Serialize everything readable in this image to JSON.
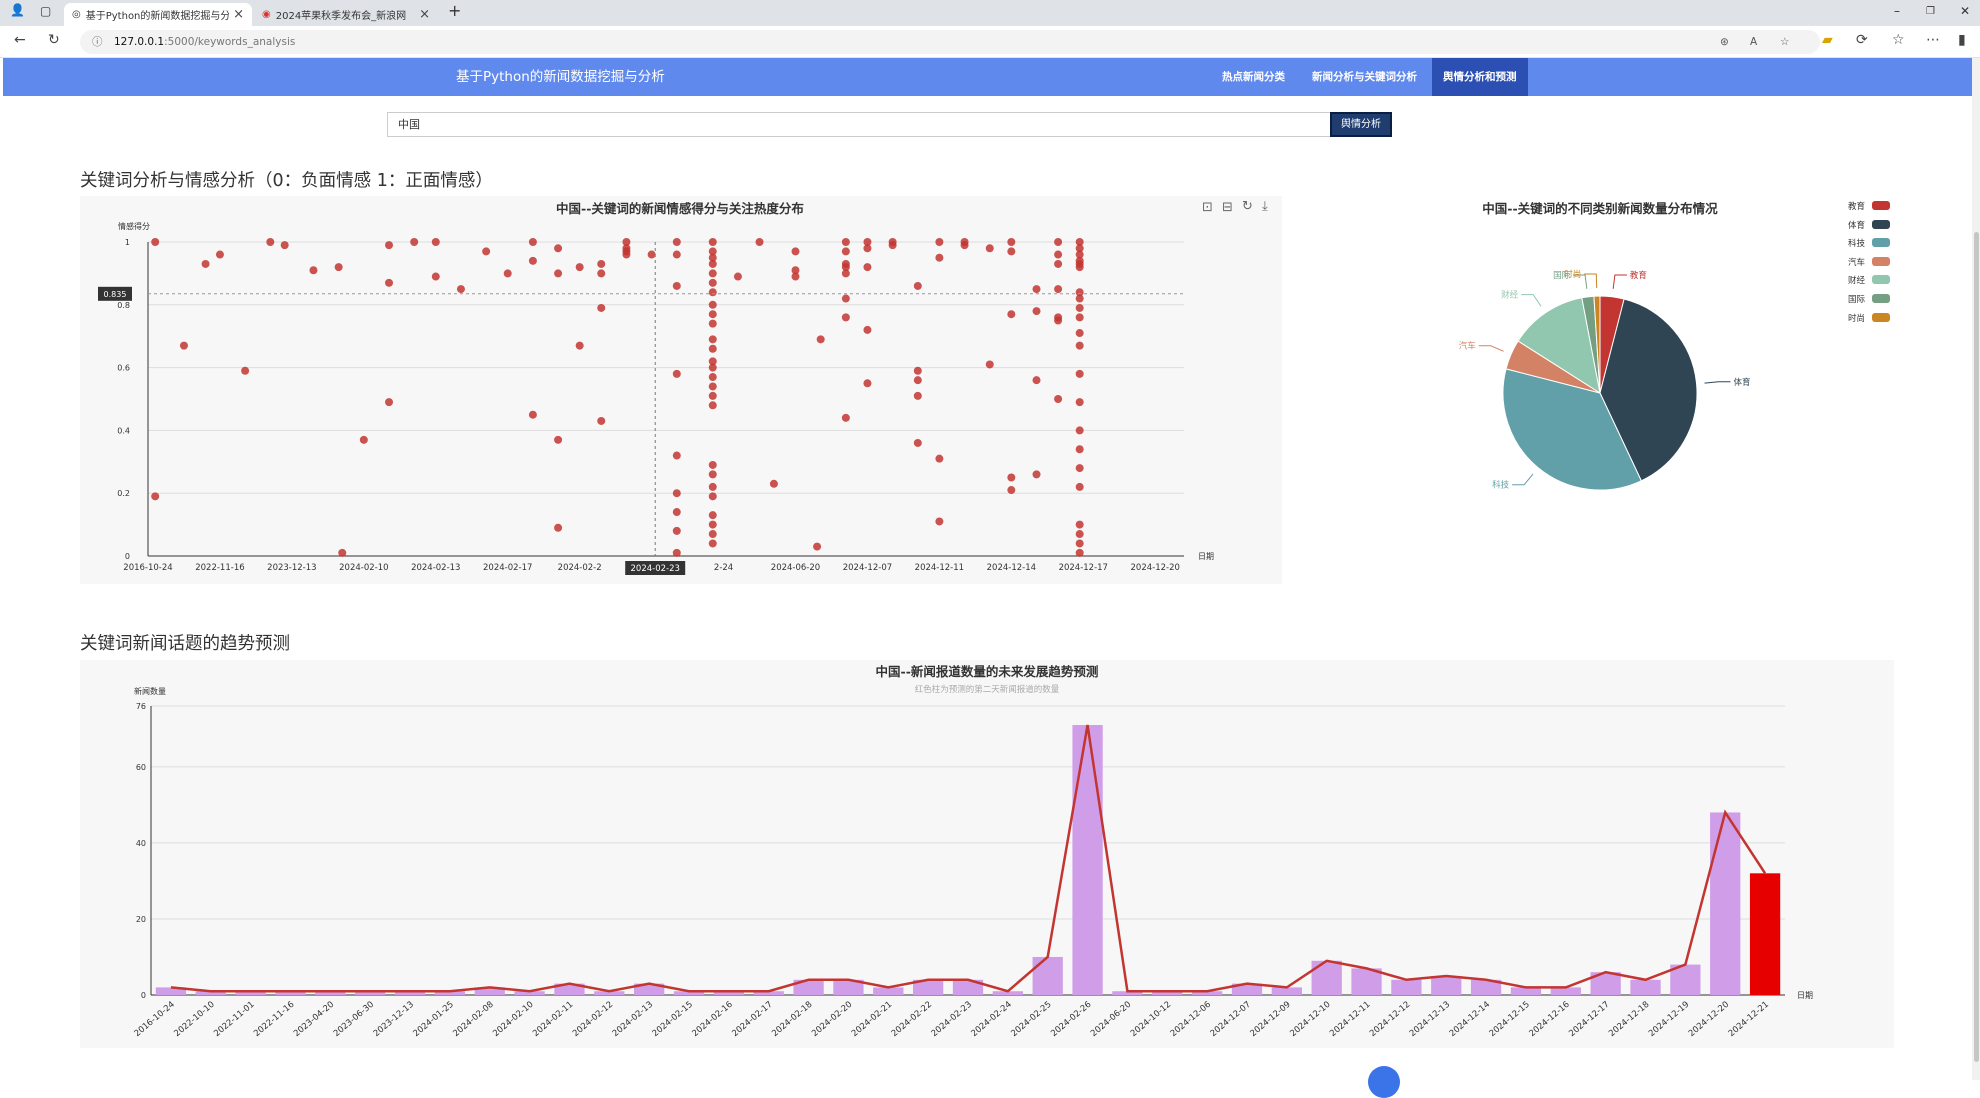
{
  "browser": {
    "tabs": [
      {
        "title": "基于Python的新闻数据挖掘与分析",
        "active": true
      },
      {
        "title": "2024苹果秋季发布会_新浪网",
        "active": false
      }
    ],
    "url_host": "127.0.0.1",
    "url_path": ":5000/keywords_analysis",
    "new_tab": "+"
  },
  "navbar": {
    "brand": "基于Python的新闻数据挖掘与分析",
    "items": [
      {
        "label": "热点新闻分类",
        "active": false
      },
      {
        "label": "新闻分析与关键词分析",
        "active": false
      },
      {
        "label": "舆情分析和预测",
        "active": true
      }
    ]
  },
  "search": {
    "value": "中国",
    "button": "舆情分析"
  },
  "section1": {
    "heading": "关键词分析与情感分析（0：负面情感 1：正面情感）"
  },
  "section2": {
    "heading": "关键词新闻话题的趋势预测"
  },
  "chart_data": [
    {
      "type": "scatter",
      "title": "中国--关键词的新闻情感得分与关注热度分布",
      "ylabel": "情感得分",
      "xlabel": "日期",
      "ylim": [
        0,
        1
      ],
      "yticks": [
        "0",
        "0.2",
        "0.4",
        "0.6",
        "0.8",
        "1"
      ],
      "xticks": [
        "2016-10-24",
        "2022-11-16",
        "2023-12-13",
        "2024-02-10",
        "2024-02-13",
        "2024-02-17",
        "2024-02-2",
        "2024-02-23",
        "2-24",
        "2024-06-20",
        "2024-12-07",
        "2024-12-11",
        "2024-12-14",
        "2024-12-17",
        "2024-12-20"
      ],
      "tooltip_y": "0.835",
      "tooltip_x": "2024-02-23",
      "grid": true,
      "points": [
        [
          0.2,
          1
        ],
        [
          0.2,
          0.19
        ],
        [
          1.0,
          0.67
        ],
        [
          1.6,
          0.93
        ],
        [
          2.0,
          0.96
        ],
        [
          2.7,
          0.59
        ],
        [
          3.4,
          1
        ],
        [
          3.8,
          0.99
        ],
        [
          4.6,
          0.91
        ],
        [
          5.3,
          0.92
        ],
        [
          5.4,
          0.01
        ],
        [
          6.0,
          0.37
        ],
        [
          6.7,
          0.99
        ],
        [
          6.7,
          0.87
        ],
        [
          6.7,
          0.49
        ],
        [
          7.4,
          1
        ],
        [
          8.0,
          0.89
        ],
        [
          8.0,
          1
        ],
        [
          8.7,
          0.85
        ],
        [
          9.4,
          0.97
        ],
        [
          10.0,
          0.9
        ],
        [
          10.7,
          1
        ],
        [
          10.7,
          0.94
        ],
        [
          10.7,
          0.45
        ],
        [
          11.4,
          0.98
        ],
        [
          11.4,
          0.9
        ],
        [
          11.4,
          0.37
        ],
        [
          11.4,
          0.09
        ],
        [
          12.0,
          0.92
        ],
        [
          12.0,
          0.67
        ],
        [
          12.6,
          0.93
        ],
        [
          12.6,
          0.9
        ],
        [
          12.6,
          0.79
        ],
        [
          12.6,
          0.43
        ],
        [
          13.3,
          1
        ],
        [
          13.3,
          0.98
        ],
        [
          13.3,
          0.97
        ],
        [
          13.3,
          0.96
        ],
        [
          14.0,
          0.96
        ],
        [
          14.7,
          1
        ],
        [
          14.7,
          0.96
        ],
        [
          14.7,
          0.86
        ],
        [
          14.7,
          0.58
        ],
        [
          14.7,
          0.32
        ],
        [
          14.7,
          0.2
        ],
        [
          14.7,
          0.14
        ],
        [
          14.7,
          0.08
        ],
        [
          14.7,
          0.01
        ],
        [
          15.7,
          1
        ],
        [
          15.7,
          0.97
        ],
        [
          15.7,
          0.95
        ],
        [
          15.7,
          0.93
        ],
        [
          15.7,
          0.9
        ],
        [
          15.7,
          0.87
        ],
        [
          15.7,
          0.84
        ],
        [
          15.7,
          0.8
        ],
        [
          15.7,
          0.77
        ],
        [
          15.7,
          0.74
        ],
        [
          15.7,
          0.69
        ],
        [
          15.7,
          0.66
        ],
        [
          15.7,
          0.62
        ],
        [
          15.7,
          0.6
        ],
        [
          15.7,
          0.57
        ],
        [
          15.7,
          0.54
        ],
        [
          15.7,
          0.51
        ],
        [
          15.7,
          0.48
        ],
        [
          15.7,
          0.29
        ],
        [
          15.7,
          0.26
        ],
        [
          15.7,
          0.22
        ],
        [
          15.7,
          0.19
        ],
        [
          15.7,
          0.13
        ],
        [
          15.7,
          0.1
        ],
        [
          15.7,
          0.07
        ],
        [
          15.7,
          0.04
        ],
        [
          16.4,
          0.89
        ],
        [
          17.0,
          1
        ],
        [
          17.4,
          0.23
        ],
        [
          18.0,
          0.97
        ],
        [
          18.0,
          0.91
        ],
        [
          18.0,
          0.89
        ],
        [
          18.6,
          0.03
        ],
        [
          18.7,
          0.69
        ],
        [
          19.4,
          1
        ],
        [
          19.4,
          0.97
        ],
        [
          19.4,
          0.93
        ],
        [
          19.4,
          0.9
        ],
        [
          19.4,
          0.82
        ],
        [
          19.4,
          0.76
        ],
        [
          19.4,
          0.44
        ],
        [
          19.4,
          0.92
        ],
        [
          20.0,
          1
        ],
        [
          20.0,
          0.98
        ],
        [
          20.0,
          0.92
        ],
        [
          20.0,
          0.72
        ],
        [
          20.0,
          0.55
        ],
        [
          20.7,
          1
        ],
        [
          20.7,
          0.99
        ],
        [
          21.4,
          0.86
        ],
        [
          21.4,
          0.59
        ],
        [
          21.4,
          0.56
        ],
        [
          21.4,
          0.51
        ],
        [
          21.4,
          0.36
        ],
        [
          22.0,
          1
        ],
        [
          22.0,
          0.95
        ],
        [
          22.0,
          0.31
        ],
        [
          22.0,
          0.11
        ],
        [
          22.7,
          1
        ],
        [
          22.7,
          0.99
        ],
        [
          23.4,
          0.98
        ],
        [
          23.4,
          0.61
        ],
        [
          24.0,
          1
        ],
        [
          24.0,
          0.97
        ],
        [
          24.0,
          0.77
        ],
        [
          24.0,
          0.25
        ],
        [
          24.0,
          0.21
        ],
        [
          24.7,
          0.85
        ],
        [
          24.7,
          0.78
        ],
        [
          24.7,
          0.56
        ],
        [
          24.7,
          0.26
        ],
        [
          25.3,
          1
        ],
        [
          25.3,
          0.96
        ],
        [
          25.3,
          0.93
        ],
        [
          25.3,
          0.85
        ],
        [
          25.3,
          0.76
        ],
        [
          25.3,
          0.75
        ],
        [
          25.3,
          0.5
        ],
        [
          25.9,
          1
        ],
        [
          25.9,
          0.98
        ],
        [
          25.9,
          0.96
        ],
        [
          25.9,
          0.94
        ],
        [
          25.9,
          0.93
        ],
        [
          25.9,
          0.92
        ],
        [
          25.9,
          0.84
        ],
        [
          25.9,
          0.82
        ],
        [
          25.9,
          0.79
        ],
        [
          25.9,
          0.76
        ],
        [
          25.9,
          0.71
        ],
        [
          25.9,
          0.67
        ],
        [
          25.9,
          0.58
        ],
        [
          25.9,
          0.49
        ],
        [
          25.9,
          0.4
        ],
        [
          25.9,
          0.34
        ],
        [
          25.9,
          0.28
        ],
        [
          25.9,
          0.22
        ],
        [
          25.9,
          0.1
        ],
        [
          25.9,
          0.07
        ],
        [
          25.9,
          0.04
        ],
        [
          25.9,
          0.01
        ]
      ]
    },
    {
      "type": "pie",
      "title": "中国--关键词的不同类别新闻数量分布情况",
      "slices": [
        {
          "name": "教育",
          "value": 4,
          "color": "#c23531"
        },
        {
          "name": "体育",
          "value": 39,
          "color": "#2f4554"
        },
        {
          "name": "科技",
          "value": 36,
          "color": "#61a0a8"
        },
        {
          "name": "汽车",
          "value": 5,
          "color": "#d48265"
        },
        {
          "name": "财经",
          "value": 13,
          "color": "#91c7ae"
        },
        {
          "name": "国际",
          "value": 2,
          "color": "#749f83"
        },
        {
          "name": "时尚",
          "value": 1,
          "color": "#ca8622"
        }
      ]
    },
    {
      "type": "bar",
      "title": "中国--新闻报道数量的未来发展趋势预测",
      "subtitle": "红色柱为预测的第二天新闻报道的数量",
      "ylabel": "新闻数量",
      "xlabel": "日期",
      "ylim": [
        0,
        76
      ],
      "yticks": [
        "0",
        "20",
        "40",
        "60",
        "76"
      ],
      "categories": [
        "2016-10-24",
        "2022-10-10",
        "2022-11-01",
        "2022-11-16",
        "2023-04-20",
        "2023-06-30",
        "2023-12-13",
        "2024-01-25",
        "2024-02-08",
        "2024-02-10",
        "2024-02-11",
        "2024-02-12",
        "2024-02-13",
        "2024-02-15",
        "2024-02-16",
        "2024-02-17",
        "2024-02-18",
        "2024-02-20",
        "2024-02-21",
        "2024-02-22",
        "2024-02-23",
        "2024-02-24",
        "2024-02-25",
        "2024-02-26",
        "2024-06-20",
        "2024-10-12",
        "2024-12-06",
        "2024-12-07",
        "2024-12-09",
        "2024-12-10",
        "2024-12-11",
        "2024-12-12",
        "2024-12-13",
        "2024-12-14",
        "2024-12-15",
        "2024-12-16",
        "2024-12-17",
        "2024-12-18",
        "2024-12-19",
        "2024-12-20",
        "2024-12-21"
      ],
      "values": [
        2,
        1,
        1,
        1,
        1,
        1,
        1,
        1,
        2,
        1,
        3,
        1,
        3,
        1,
        1,
        1,
        4,
        4,
        2,
        4,
        4,
        1,
        10,
        71,
        1,
        1,
        1,
        3,
        2,
        9,
        7,
        4,
        5,
        4,
        2,
        2,
        6,
        4,
        8,
        48,
        32
      ],
      "predicted_index": 40,
      "bar_color": "#d09ee8",
      "pred_color": "#e60000",
      "line_color": "#c23531"
    }
  ]
}
